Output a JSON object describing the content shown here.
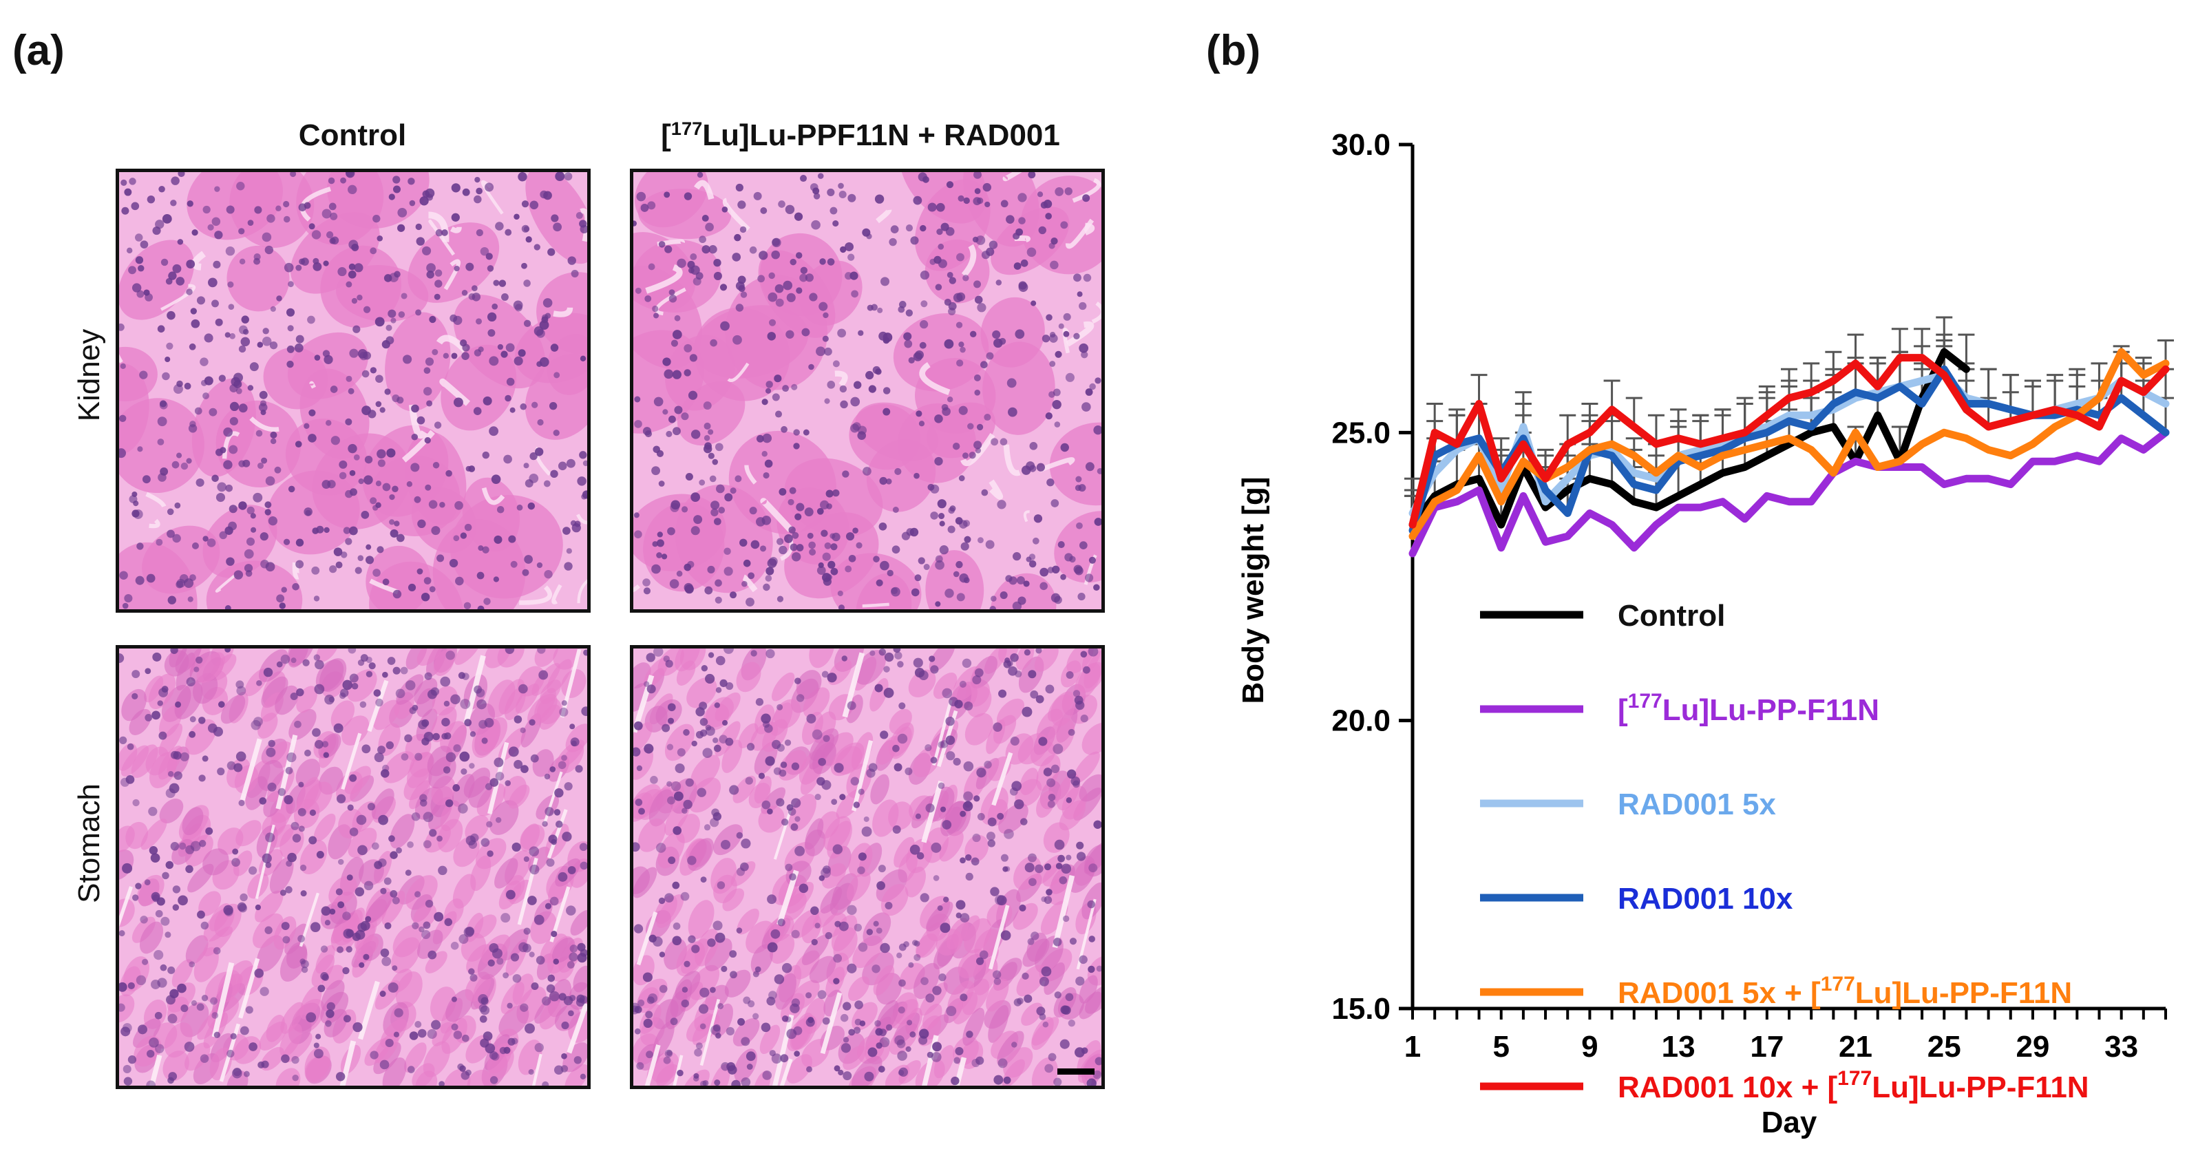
{
  "panel_a": {
    "label": "(a)",
    "columns": {
      "control": "Control",
      "treated_sup": "177",
      "treated_rest": "Lu]Lu-PPF11N + RAD001"
    },
    "rows": {
      "kidney": "Kidney",
      "stomach": "Stomach"
    },
    "colors": {
      "tissue": "#e77fc9",
      "nucleus": "#6a3a8e",
      "background": "#f3b8e3"
    }
  },
  "panel_b": {
    "label": "(b)"
  },
  "chart_data": {
    "type": "line",
    "title": "",
    "xlabel": "Day",
    "ylabel": "Body weight [g]",
    "xlim": [
      1,
      35
    ],
    "ylim": [
      15,
      30
    ],
    "x_ticks": [
      "1",
      "5",
      "9",
      "13",
      "17",
      "21",
      "25",
      "29",
      "33"
    ],
    "y_ticks": [
      "15.0",
      "20.0",
      "25.0",
      "30.0"
    ],
    "x": [
      1,
      2,
      3,
      4,
      5,
      6,
      7,
      8,
      9,
      10,
      11,
      12,
      13,
      14,
      15,
      16,
      17,
      18,
      19,
      20,
      21,
      22,
      23,
      24,
      25,
      26,
      27,
      28,
      29,
      30,
      31,
      32,
      33,
      34,
      35
    ],
    "legend_position": "lower-left",
    "series": [
      {
        "name": "Control",
        "color": "#000000",
        "error": 0.6,
        "values": [
          23.4,
          23.9,
          24.1,
          24.2,
          23.4,
          24.4,
          23.7,
          24.0,
          24.2,
          24.1,
          23.8,
          23.7,
          23.9,
          24.1,
          24.3,
          24.4,
          24.6,
          24.8,
          25.0,
          25.1,
          24.5,
          25.3,
          24.5,
          25.6,
          26.4,
          26.1,
          null,
          null,
          null,
          null,
          null,
          null,
          null,
          null,
          null
        ]
      },
      {
        "name_prefix": "[",
        "name_sup": "177",
        "name_rest": "Lu]Lu-PP-F11N",
        "color": "#9b2bd8",
        "error": 0,
        "values": [
          22.9,
          23.7,
          23.8,
          24.0,
          23.0,
          23.9,
          23.1,
          23.2,
          23.6,
          23.4,
          23.0,
          23.4,
          23.7,
          23.7,
          23.8,
          23.5,
          23.9,
          23.8,
          23.8,
          24.3,
          24.5,
          24.4,
          24.4,
          24.4,
          24.1,
          24.2,
          24.2,
          24.1,
          24.5,
          24.5,
          24.6,
          24.5,
          24.9,
          24.7,
          25.0
        ]
      },
      {
        "name": "RAD001 5x",
        "color": "#9dc4ee",
        "error": 0.6,
        "values": [
          23.6,
          24.3,
          24.7,
          24.9,
          24.0,
          25.1,
          23.8,
          24.2,
          24.6,
          24.7,
          24.3,
          24.2,
          24.6,
          24.7,
          24.8,
          25.0,
          25.1,
          25.3,
          25.3,
          25.4,
          25.6,
          25.7,
          25.8,
          25.9,
          26.0,
          25.6,
          25.5,
          25.4,
          25.3,
          25.4,
          25.5,
          25.6,
          25.9,
          25.7,
          25.5
        ]
      },
      {
        "name": "RAD001 10x",
        "color": "#1f5fb8",
        "error": 0.6,
        "values": [
          23.3,
          24.6,
          24.8,
          24.9,
          24.3,
          24.9,
          24.0,
          23.6,
          24.7,
          24.6,
          24.1,
          24.0,
          24.5,
          24.6,
          24.7,
          24.9,
          25.0,
          25.2,
          25.1,
          25.5,
          25.7,
          25.6,
          25.8,
          25.5,
          26.1,
          25.5,
          25.5,
          25.4,
          25.3,
          25.3,
          25.4,
          25.3,
          25.6,
          25.3,
          25.0
        ]
      },
      {
        "name": "RAD001 5x + [",
        "name_sup": "177",
        "name_rest": "Lu]Lu-PP-F11N",
        "color": "#ff7f0e",
        "error": 0,
        "values": [
          23.2,
          23.8,
          24.0,
          24.6,
          23.8,
          24.5,
          24.2,
          24.4,
          24.7,
          24.8,
          24.6,
          24.3,
          24.6,
          24.4,
          24.6,
          24.7,
          24.8,
          24.9,
          24.7,
          24.3,
          25.0,
          24.4,
          24.5,
          24.8,
          25.0,
          24.9,
          24.7,
          24.6,
          24.8,
          25.1,
          25.3,
          25.6,
          26.4,
          26.0,
          26.2
        ]
      },
      {
        "name": "RAD001 10x + [",
        "name_sup": "177",
        "name_rest": "Lu]Lu-PP-F11N",
        "color": "#ee1111",
        "error": 0.5,
        "values": [
          23.4,
          25.0,
          24.8,
          25.5,
          24.2,
          24.8,
          24.2,
          24.8,
          25.0,
          25.4,
          25.1,
          24.8,
          24.9,
          24.8,
          24.9,
          25.0,
          25.3,
          25.6,
          25.7,
          25.9,
          26.2,
          25.8,
          26.3,
          26.3,
          26.0,
          25.4,
          25.1,
          25.2,
          25.3,
          25.4,
          25.3,
          25.1,
          25.9,
          25.7,
          26.1
        ]
      }
    ]
  }
}
